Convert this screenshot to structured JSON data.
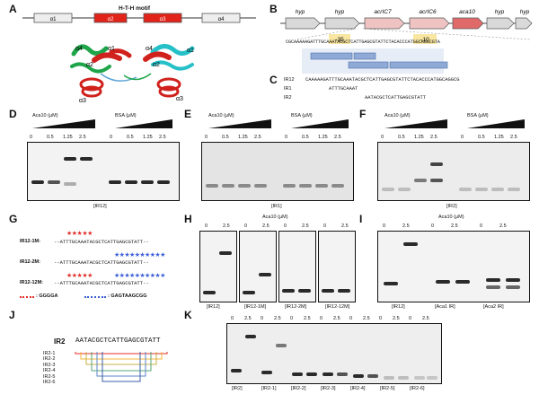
{
  "panels": {
    "A": "A",
    "B": "B",
    "C": "C",
    "D": "D",
    "E": "E",
    "F": "F",
    "G": "G",
    "H": "H",
    "I": "I",
    "J": "J",
    "K": "K"
  },
  "a": {
    "motif_title": "H-T-H motif",
    "helix_labels": [
      "α1",
      "α2",
      "α3",
      "α4"
    ],
    "structure_labels": [
      "α4",
      "α2",
      "α1",
      "α4",
      "α2",
      "α1",
      "α3",
      "α3"
    ]
  },
  "b": {
    "genes": [
      "hyp",
      "hyp",
      "acrIC7",
      "acrIC6",
      "aca10",
      "hyp",
      "hyp"
    ],
    "minus35": "-35",
    "minus10": "-10",
    "sequence": "CGCAAAAAGATTTGCAAATACGCTCATTGAGCGTATTCTACACCCATGGCAGGCGTA"
  },
  "c": {
    "rows": [
      {
        "name": "IR12",
        "seq": "CAAAAAGATTTGCAAATACGCTCATTGAGCGTATTCTACACCCATGGCAGGCG"
      },
      {
        "name": "IR1",
        "seq": "ATTTGCAAAT"
      },
      {
        "name": "IR2",
        "seq": "AATACGCTCATTGAGCGTATT"
      }
    ]
  },
  "gels": {
    "conc_title": "Aca10 (μM)",
    "bsa_title": "BSA (μM)",
    "lanes": [
      "0",
      "0.5",
      "1.25",
      "2.5",
      "0",
      "0.5",
      "1.25",
      "2.5"
    ],
    "d_label": "[IR12]",
    "e_label": "[IR1]",
    "f_label": "[IR2]"
  },
  "g": {
    "rows": [
      {
        "name": "IR12-1M:",
        "seq": "--ATTTGCAAATACGCTCATTGAGCGTATT--"
      },
      {
        "name": "IR12-2M:",
        "seq": "--ATTTGCAAATACGCTCATTGAGCGTATT--"
      },
      {
        "name": "IR12-12M:",
        "seq": "--ATTTGCAAATACGCTCATTGAGCGTATT--"
      }
    ],
    "legend_red": ": GGGGA",
    "legend_blue": ": GAGTAAGCGG"
  },
  "h": {
    "title": "Aca10 (μM)",
    "lanes": [
      "0",
      "2.5"
    ],
    "labels": [
      "[IR12]",
      "[IR12-1M]",
      "[IR12-2M]",
      "[IR12-12M]"
    ]
  },
  "i": {
    "title": "Aca10 (μM)",
    "lanes": [
      "0",
      "2.5",
      "0",
      "2.5",
      "0",
      "2.5"
    ],
    "labels": [
      "[IR12]",
      "[Aca1 IR]",
      "[Aca2 IR]"
    ]
  },
  "j": {
    "name": "IR2",
    "seq": "AATACGCTCATTGAGCGTATT",
    "subs": [
      "IR2-1",
      "IR2-2",
      "IR2-3",
      "IR2-4",
      "IR2-5",
      "IR2-6"
    ],
    "colors": [
      "#e0302a",
      "#f4b73e",
      "#c9b24a",
      "#5aa47a",
      "#5b86c6",
      "#3a5fa8"
    ]
  },
  "k": {
    "lanes": [
      "0",
      "2.5",
      "0",
      "2.5",
      "0",
      "2.5",
      "0",
      "2.5",
      "0",
      "2.5",
      "0",
      "2.5",
      "0",
      "2.5"
    ],
    "labels": [
      "[IR2]",
      "[IR2-1]",
      "[IR2-2]",
      "[IR2-3]",
      "[IR2-4]",
      "[IR2-5]",
      "[IR2-6]"
    ]
  }
}
